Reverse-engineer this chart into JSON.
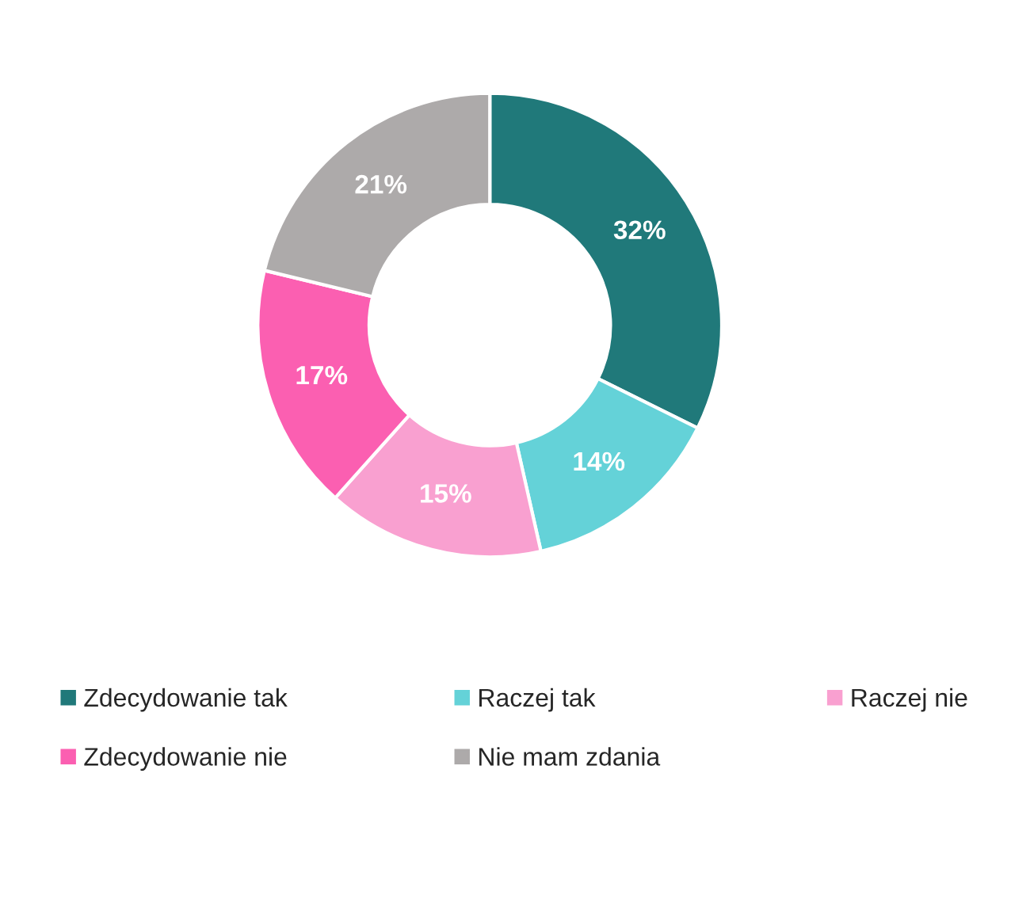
{
  "chart_data": {
    "type": "donut",
    "categories": [
      "Zdecydowanie tak",
      "Raczej tak",
      "Raczej nie",
      "Zdecydowanie nie",
      "Nie mam zdania"
    ],
    "values": [
      32,
      14,
      15,
      17,
      21
    ],
    "colors": [
      "#20797a",
      "#64d2d8",
      "#f9a0d0",
      "#fb5fb1",
      "#adaaaa"
    ],
    "value_labels": [
      "32%",
      "14%",
      "15%",
      "17%",
      "21%"
    ],
    "legend": "bottom"
  }
}
